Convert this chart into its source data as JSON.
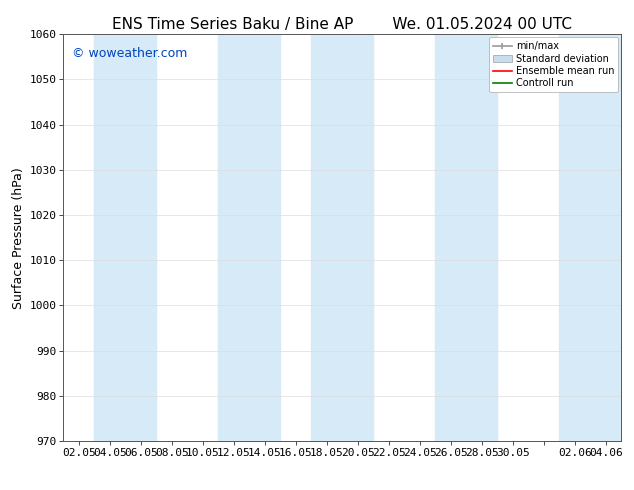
{
  "title_left": "ENS Time Series Baku / Bine AP",
  "title_right": "We. 01.05.2024 00 UTC",
  "ylabel": "Surface Pressure (hPa)",
  "ylim": [
    970,
    1060
  ],
  "yticks": [
    970,
    980,
    990,
    1000,
    1010,
    1020,
    1030,
    1040,
    1050,
    1060
  ],
  "xtick_labels": [
    "02.05",
    "04.05",
    "06.05",
    "08.05",
    "10.05",
    "12.05",
    "14.05",
    "16.05",
    "18.05",
    "20.05",
    "22.05",
    "24.05",
    "26.05",
    "28.05",
    "30.05",
    "",
    "02.06",
    "04.06"
  ],
  "watermark": "© woweather.com",
  "watermark_color": "#0044bb",
  "bg_color": "#ffffff",
  "plot_bg_color": "#ffffff",
  "band_color": "#d6eaf8",
  "legend_labels": [
    "min/max",
    "Standard deviation",
    "Ensemble mean run",
    "Controll run"
  ],
  "legend_colors": [
    "#999999",
    "#c8ddf0",
    "#ff0000",
    "#008000"
  ],
  "title_fontsize": 11,
  "label_fontsize": 9,
  "tick_fontsize": 8,
  "watermark_fontsize": 9
}
